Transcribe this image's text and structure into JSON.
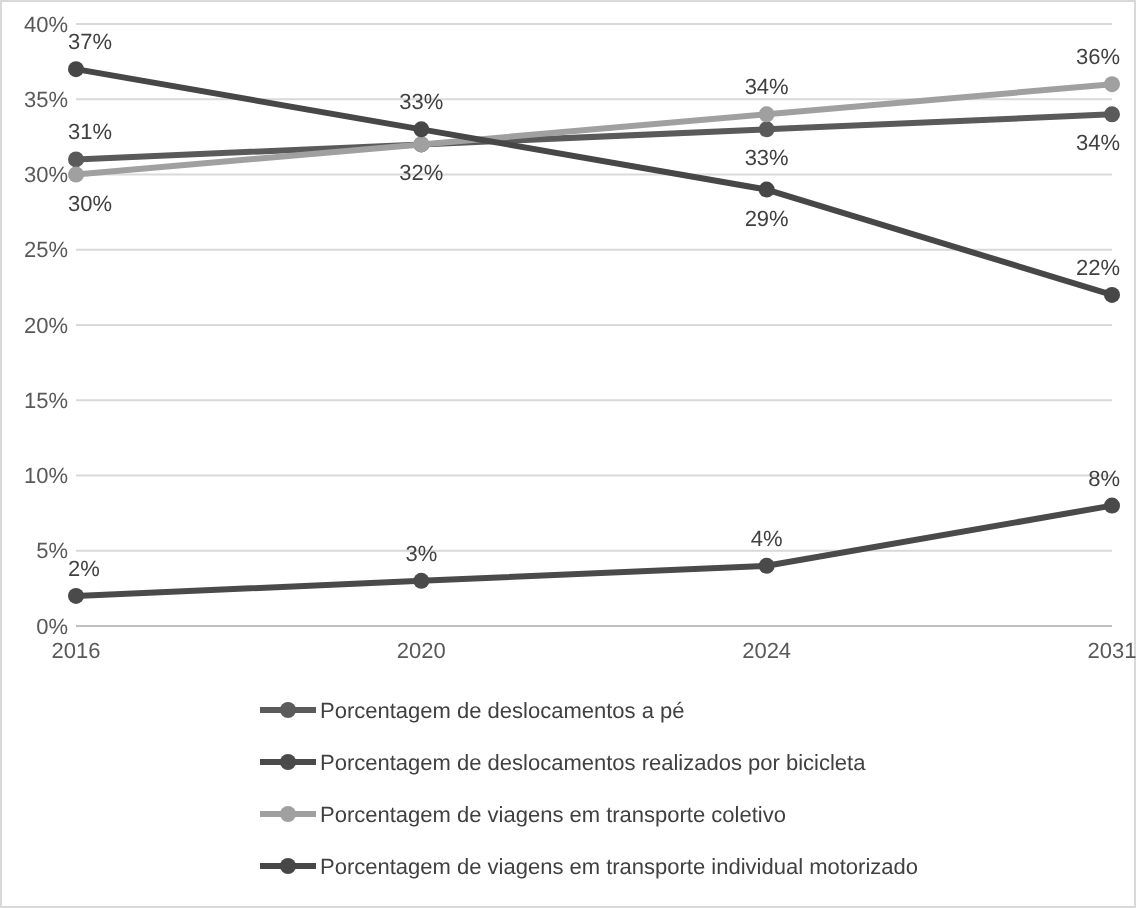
{
  "chart_data": {
    "type": "line",
    "categories": [
      "2016",
      "2020",
      "2024",
      "2031"
    ],
    "series": [
      {
        "name": "Porcentagem de deslocamentos a pé",
        "color": "#5a5a5a",
        "values": [
          31,
          32,
          33,
          34
        ],
        "value_labels": [
          "31%",
          "32%",
          "33%",
          "34%"
        ]
      },
      {
        "name": "Porcentagem de deslocamentos realizados por bicicleta",
        "color": "#4a4a4a",
        "values": [
          2,
          3,
          4,
          8
        ],
        "value_labels": [
          "2%",
          "3%",
          "4%",
          "8%"
        ]
      },
      {
        "name": "Porcentagem de viagens em transporte coletivo",
        "color": "#a0a0a0",
        "values": [
          30,
          32,
          34,
          36
        ],
        "value_labels": [
          "30%",
          null,
          "34%",
          "36%"
        ]
      },
      {
        "name": "Porcentagem de viagens em transporte individual motorizado",
        "color": "#474747",
        "values": [
          37,
          33,
          29,
          22
        ],
        "value_labels": [
          "37%",
          "33%",
          "29%",
          "22%"
        ]
      }
    ],
    "ylim": [
      0,
      40
    ],
    "yticks": [
      {
        "value": 0,
        "label": "0%"
      },
      {
        "value": 5,
        "label": "5%"
      },
      {
        "value": 10,
        "label": "10%"
      },
      {
        "value": 15,
        "label": "15%"
      },
      {
        "value": 20,
        "label": "20%"
      },
      {
        "value": 25,
        "label": "25%"
      },
      {
        "value": 30,
        "label": "30%"
      },
      {
        "value": 35,
        "label": "35%"
      },
      {
        "value": 40,
        "label": "40%"
      }
    ],
    "grid": "y",
    "legend": "bottom",
    "marker": "circle",
    "line_style": "solid"
  }
}
